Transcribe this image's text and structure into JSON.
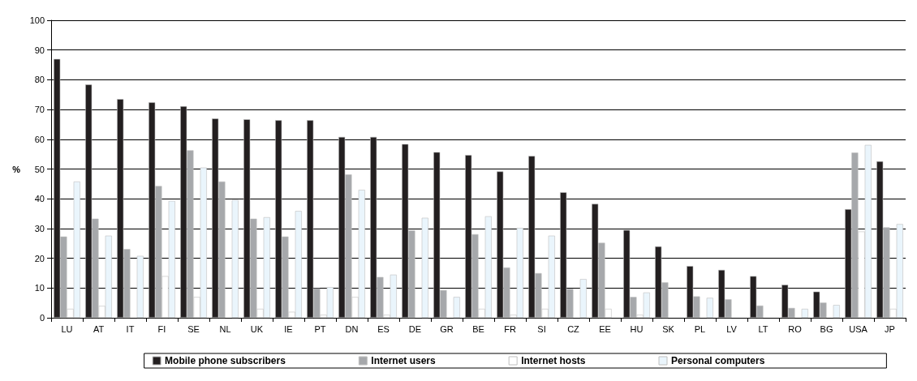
{
  "chart_data": {
    "type": "bar",
    "ylabel": "%",
    "categories": [
      "LU",
      "AT",
      "IT",
      "FI",
      "SE",
      "NL",
      "UK",
      "IE",
      "PT",
      "DN",
      "ES",
      "DE",
      "GR",
      "BE",
      "FR",
      "SI",
      "CZ",
      "EE",
      "HU",
      "SK",
      "PL",
      "LV",
      "LT",
      "RO",
      "BG",
      "USA",
      "JP"
    ],
    "series": [
      {
        "name": "Mobile phone subscribers",
        "color": "#231f20",
        "values": [
          87.0,
          78.4,
          73.5,
          72.4,
          71.1,
          67.0,
          66.7,
          66.4,
          66.4,
          60.8,
          60.8,
          58.4,
          55.7,
          54.7,
          49.2,
          54.4,
          42.2,
          38.3,
          29.5,
          24.0,
          17.4,
          16.1,
          14.0,
          11.1,
          8.8,
          36.5,
          52.6
        ]
      },
      {
        "name": "Internet users",
        "color": "#a6a8ab",
        "values": [
          27.3,
          33.3,
          23.1,
          44.3,
          56.3,
          45.8,
          33.3,
          27.3,
          9.9,
          48.2,
          13.7,
          29.4,
          9.3,
          28.1,
          16.9,
          15.0,
          9.7,
          25.2,
          7.0,
          11.9,
          7.2,
          6.2,
          4.1,
          3.3,
          5.1,
          55.5,
          30.4
        ]
      },
      {
        "name": "Internet hosts",
        "color": "#ffffff",
        "values": [
          3,
          4,
          null,
          14,
          7,
          null,
          3,
          2,
          1,
          7,
          1,
          null,
          null,
          3,
          1,
          3,
          null,
          3,
          1,
          null,
          null,
          null,
          null,
          null,
          null,
          29,
          3
        ]
      },
      {
        "name": "Personal computers",
        "color": "#eaf5fc",
        "values": [
          45.8,
          27.6,
          20.8,
          39.3,
          50.5,
          39.6,
          33.8,
          35.9,
          10.3,
          43.0,
          14.5,
          33.6,
          7.0,
          34.1,
          30.2,
          27.6,
          13.0,
          null,
          8.5,
          null,
          6.7,
          null,
          null,
          3.0,
          4.3,
          58.1,
          31.5
        ]
      }
    ],
    "ylim": [
      0,
      100
    ],
    "yticks": [
      0,
      10,
      20,
      30,
      40,
      50,
      60,
      70,
      80,
      90,
      100
    ],
    "grid": "y",
    "legend": "bottom"
  }
}
